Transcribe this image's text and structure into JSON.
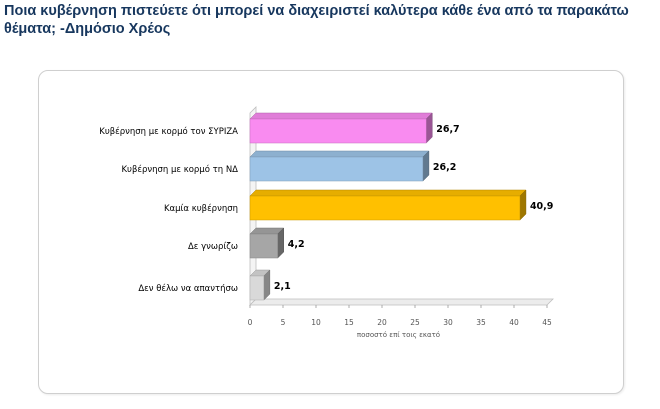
{
  "title": "Ποια κυβέρνηση  πιστεύετε ότι μπορεί να διαχειριστεί καλύτερα κάθε ένα από τα παρακάτω θέματα;  -Δημόσιο Χρέος",
  "chart_data": {
    "type": "bar",
    "orientation": "horizontal",
    "style": "3d",
    "categories": [
      "Κυβέρνηση με κορμό τον ΣΥΡΙΖΑ",
      "Κυβέρνηση με κορμό τη ΝΔ",
      "Καμία κυβέρνηση",
      "Δε γνωρίζω",
      "Δεν θέλω να απαντήσω"
    ],
    "values": [
      26.7,
      26.2,
      40.9,
      4.2,
      2.1
    ],
    "value_labels": [
      "26,7",
      "26,2",
      "40,9",
      "4,2",
      "2,1"
    ],
    "colors": [
      "#F98BF0",
      "#9DC3E6",
      "#FFC000",
      "#A6A6A6",
      "#D9D9D9"
    ],
    "xlabel": "ποσοστό επί τοις εκατό",
    "ylabel": "",
    "xlim": [
      0,
      45
    ],
    "xticks": [
      0,
      5,
      10,
      15,
      20,
      25,
      30,
      35,
      40,
      45
    ],
    "grid": false,
    "legend": "none"
  }
}
